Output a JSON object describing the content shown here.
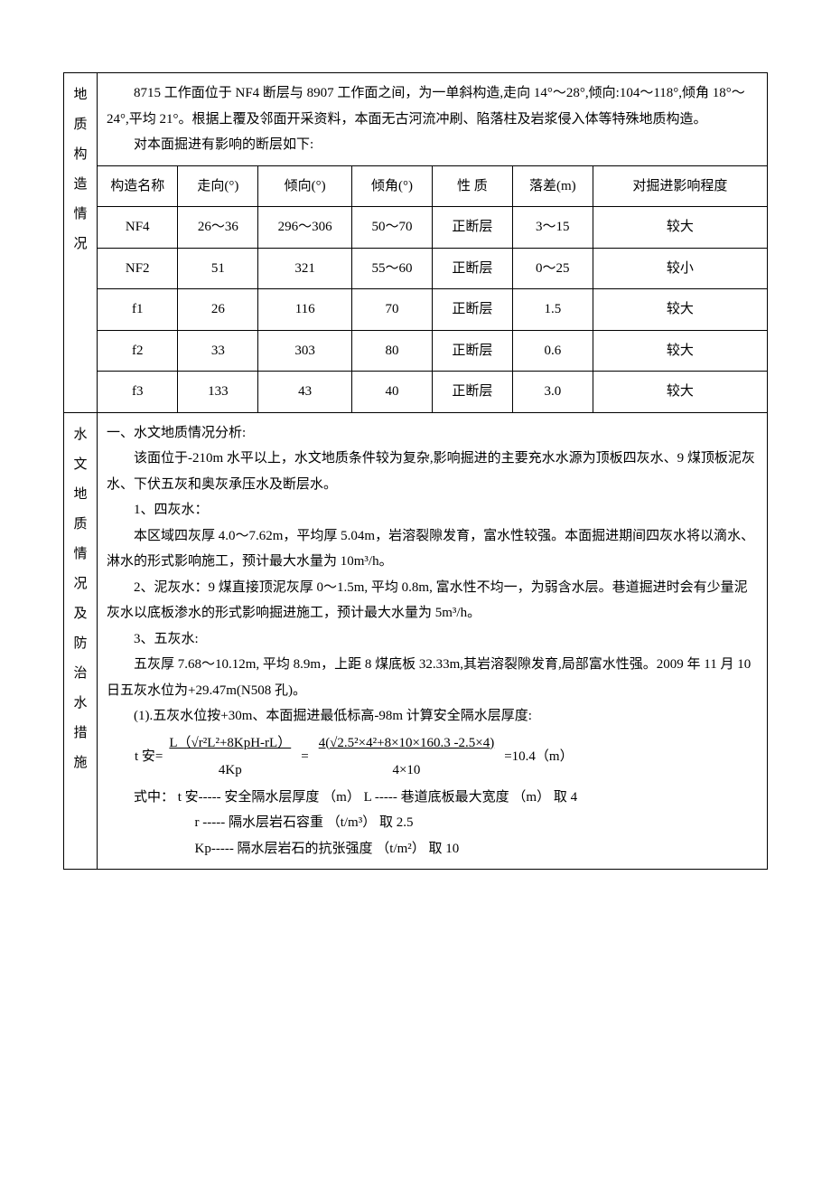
{
  "section1": {
    "sideLabel": "地质构造情况",
    "intro1": "8715 工作面位于 NF4 断层与 8907 工作面之间，为一单斜构造,走向 14°～28°,倾向:104～118°,倾角 18°～24°,平均 21°。根据上覆及邻面开采资料，本面无古河流冲刷、陷落柱及岩浆侵入体等特殊地质构造。",
    "intro2": "对本面掘进有影响的断层如下:",
    "table": {
      "headers": [
        "构造名称",
        "走向(°)",
        "倾向(°)",
        "倾角(°)",
        "性  质",
        "落差(m)",
        "对掘进影响程度"
      ],
      "rows": [
        [
          "NF4",
          "26～36",
          "296～306",
          "50～70",
          "正断层",
          "3～15",
          "较大"
        ],
        [
          "NF2",
          "51",
          "321",
          "55～60",
          "正断层",
          "0～25",
          "较小"
        ],
        [
          "f1",
          "26",
          "116",
          "70",
          "正断层",
          "1.5",
          "较大"
        ],
        [
          "f2",
          "33",
          "303",
          "80",
          "正断层",
          "0.6",
          "较大"
        ],
        [
          "f3",
          "133",
          "43",
          "40",
          "正断层",
          "3.0",
          "较大"
        ]
      ],
      "colWidths": [
        "12%",
        "12%",
        "14%",
        "12%",
        "12%",
        "12%",
        "26%"
      ]
    }
  },
  "section2": {
    "sideLabel": "水文地质情况及防治水措施",
    "h1": "一、水文地质情况分析:",
    "p1": "该面位于-210m 水平以上，水文地质条件较为复杂,影响掘进的主要充水水源为顶板四灰水、9 煤顶板泥灰水、下伏五灰和奥灰承压水及断层水。",
    "p2": "1、四灰水：",
    "p3": "本区域四灰厚 4.0～7.62m，平均厚 5.04m，岩溶裂隙发育，富水性较强。本面掘进期间四灰水将以滴水、淋水的形式影响施工，预计最大水量为 10m³/h。",
    "p4": "2、泥灰水：9 煤直接顶泥灰厚 0～1.5m, 平均 0.8m, 富水性不均一，为弱含水层。巷道掘进时会有少量泥灰水以底板渗水的形式影响掘进施工，预计最大水量为 5m³/h。",
    "p5": "3、五灰水:",
    "p6": "五灰厚 7.68～10.12m, 平均 8.9m，上距 8 煤底板 32.33m,其岩溶裂隙发育,局部富水性强。2009 年 11 月 10 日五灰水位为+29.47m(N508 孔)。",
    "p7": "(1).五灰水位按+30m、本面掘进最低标高-98m 计算安全隔水层厚度:",
    "formula": {
      "lhs_var": "t 安=",
      "num1": "L（√r²L²+8KpH-rL）",
      "den1": "4Kp",
      "eq1": "=",
      "num2": "4(√2.5²×4²+8×10×160.3 -2.5×4)",
      "den2": "4×10",
      "result": "=10.4（m）"
    },
    "def_intro": "式中：",
    "def1": "t 安----- 安全隔水层厚度 （m）     L ----- 巷道底板最大宽度 （m）  取 4",
    "def2": "r ----- 隔水层岩石容重 （t/m³）   取  2.5",
    "def3": "Kp----- 隔水层岩石的抗张强度 （t/m²）   取  10"
  }
}
